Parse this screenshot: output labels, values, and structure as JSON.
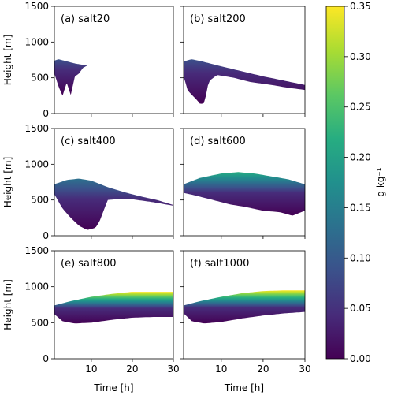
{
  "figure": {
    "colorbar": {
      "label": "g kg⁻¹",
      "ticks": [
        "0.00",
        "0.05",
        "0.10",
        "0.15",
        "0.20",
        "0.25",
        "0.30",
        "0.35"
      ],
      "range": [
        0,
        0.35
      ],
      "colormap": [
        "#440154",
        "#472c7a",
        "#3b518b",
        "#2c718e",
        "#21908d",
        "#27ad81",
        "#5cc863",
        "#aadc32",
        "#fde725"
      ]
    },
    "x_ticks": [
      "10",
      "20",
      "30"
    ],
    "y_ticks": [
      "0",
      "500",
      "1000",
      "1500"
    ],
    "xlabel": "Time [h]",
    "ylabel": "Height [m]"
  },
  "chart_data": [
    {
      "type": "heatmap",
      "title": "(a) salt20",
      "xlim": [
        1,
        30
      ],
      "ylim": [
        0,
        1500
      ],
      "top": [
        [
          1,
          740
        ],
        [
          2,
          760
        ],
        [
          4,
          730
        ],
        [
          6,
          700
        ],
        [
          8,
          680
        ],
        [
          9,
          670
        ]
      ],
      "bottom": [
        [
          1,
          560
        ],
        [
          2,
          380
        ],
        [
          3,
          250
        ],
        [
          4,
          430
        ],
        [
          5,
          260
        ],
        [
          6,
          520
        ],
        [
          7,
          560
        ],
        [
          8,
          640
        ],
        [
          9,
          670
        ]
      ],
      "peak": 0.07
    },
    {
      "type": "heatmap",
      "title": "(b) salt200",
      "xlim": [
        1,
        30
      ],
      "ylim": [
        0,
        1500
      ],
      "top": [
        [
          1,
          730
        ],
        [
          3,
          760
        ],
        [
          6,
          720
        ],
        [
          10,
          660
        ],
        [
          15,
          590
        ],
        [
          20,
          520
        ],
        [
          25,
          460
        ],
        [
          30,
          400
        ]
      ],
      "bottom": [
        [
          1,
          520
        ],
        [
          2,
          320
        ],
        [
          4,
          200
        ],
        [
          5,
          130
        ],
        [
          6,
          150
        ],
        [
          7,
          450
        ],
        [
          9,
          540
        ],
        [
          13,
          500
        ],
        [
          17,
          440
        ],
        [
          22,
          400
        ],
        [
          26,
          360
        ],
        [
          30,
          330
        ]
      ],
      "peak": 0.08
    },
    {
      "type": "heatmap",
      "title": "(c) salt400",
      "xlim": [
        1,
        30
      ],
      "ylim": [
        0,
        1500
      ],
      "top": [
        [
          1,
          720
        ],
        [
          4,
          780
        ],
        [
          7,
          800
        ],
        [
          10,
          770
        ],
        [
          14,
          680
        ],
        [
          18,
          610
        ],
        [
          22,
          550
        ],
        [
          26,
          500
        ],
        [
          30,
          430
        ]
      ],
      "bottom": [
        [
          1,
          580
        ],
        [
          3,
          380
        ],
        [
          5,
          250
        ],
        [
          7,
          140
        ],
        [
          9,
          80
        ],
        [
          11,
          110
        ],
        [
          12,
          200
        ],
        [
          14,
          500
        ],
        [
          16,
          510
        ],
        [
          20,
          510
        ],
        [
          25,
          470
        ],
        [
          30,
          420
        ]
      ],
      "peak": 0.14
    },
    {
      "type": "heatmap",
      "title": "(d) salt600",
      "xlim": [
        1,
        30
      ],
      "ylim": [
        0,
        1500
      ],
      "top": [
        [
          1,
          720
        ],
        [
          5,
          810
        ],
        [
          10,
          870
        ],
        [
          14,
          890
        ],
        [
          18,
          870
        ],
        [
          22,
          830
        ],
        [
          26,
          790
        ],
        [
          30,
          720
        ]
      ],
      "bottom": [
        [
          1,
          600
        ],
        [
          4,
          560
        ],
        [
          8,
          500
        ],
        [
          12,
          440
        ],
        [
          16,
          400
        ],
        [
          20,
          350
        ],
        [
          24,
          330
        ],
        [
          27,
          280
        ],
        [
          30,
          350
        ]
      ],
      "peak": 0.22
    },
    {
      "type": "heatmap",
      "title": "(e) salt800",
      "xlim": [
        1,
        30
      ],
      "ylim": [
        0,
        1500
      ],
      "top": [
        [
          1,
          740
        ],
        [
          5,
          800
        ],
        [
          10,
          860
        ],
        [
          15,
          900
        ],
        [
          20,
          930
        ],
        [
          25,
          930
        ],
        [
          30,
          930
        ]
      ],
      "bottom": [
        [
          1,
          620
        ],
        [
          3,
          520
        ],
        [
          6,
          490
        ],
        [
          10,
          500
        ],
        [
          15,
          540
        ],
        [
          20,
          570
        ],
        [
          25,
          580
        ],
        [
          30,
          580
        ]
      ],
      "peak": 0.35
    },
    {
      "type": "heatmap",
      "title": "(f) salt1000",
      "xlim": [
        1,
        30
      ],
      "ylim": [
        0,
        1500
      ],
      "top": [
        [
          1,
          740
        ],
        [
          5,
          800
        ],
        [
          10,
          860
        ],
        [
          15,
          910
        ],
        [
          20,
          940
        ],
        [
          25,
          950
        ],
        [
          30,
          950
        ]
      ],
      "bottom": [
        [
          1,
          630
        ],
        [
          3,
          520
        ],
        [
          6,
          490
        ],
        [
          10,
          510
        ],
        [
          15,
          560
        ],
        [
          20,
          600
        ],
        [
          25,
          630
        ],
        [
          30,
          650
        ]
      ],
      "peak": 0.35
    }
  ]
}
